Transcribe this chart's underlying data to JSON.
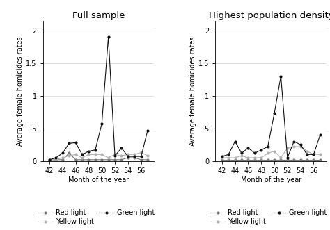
{
  "x": [
    42,
    43,
    44,
    45,
    46,
    47,
    48,
    49,
    50,
    51,
    52,
    53,
    54,
    55,
    56,
    57
  ],
  "left": {
    "title": "Full sample",
    "red": [
      0.02,
      0.02,
      0.02,
      0.12,
      0.02,
      0.02,
      0.02,
      0.02,
      0.02,
      0.02,
      0.02,
      0.02,
      0.05,
      0.05,
      0.02,
      0.02
    ],
    "yellow": [
      0.02,
      0.02,
      0.05,
      0.08,
      0.1,
      0.05,
      0.1,
      0.1,
      0.1,
      0.05,
      0.1,
      0.08,
      0.1,
      0.1,
      0.13,
      0.08
    ],
    "green": [
      0.02,
      0.05,
      0.12,
      0.27,
      0.28,
      0.1,
      0.15,
      0.17,
      0.57,
      1.9,
      0.08,
      0.2,
      0.07,
      0.07,
      0.07,
      0.47
    ]
  },
  "right": {
    "title": "Highest population density",
    "red": [
      0.02,
      0.02,
      0.02,
      0.02,
      0.02,
      0.02,
      0.02,
      0.02,
      0.02,
      0.02,
      0.02,
      0.02,
      0.02,
      0.02,
      0.02,
      0.02
    ],
    "yellow": [
      0.05,
      0.05,
      0.05,
      0.08,
      0.05,
      0.05,
      0.05,
      0.12,
      0.15,
      0.05,
      0.2,
      0.22,
      0.22,
      0.15,
      0.1,
      0.1
    ],
    "green": [
      0.07,
      0.1,
      0.3,
      0.12,
      0.2,
      0.12,
      0.17,
      0.22,
      0.73,
      1.3,
      0.05,
      0.3,
      0.25,
      0.1,
      0.1,
      0.4
    ]
  },
  "ylabel": "Average female homicides rates",
  "xlabel": "Month of the year",
  "ylim": [
    0,
    2.15
  ],
  "ytick_vals": [
    0,
    0.5,
    1.0,
    1.5,
    2.0
  ],
  "ytick_labels": [
    "0",
    ".5",
    "1",
    "1.5",
    "2"
  ],
  "xticks": [
    42,
    44,
    46,
    48,
    50,
    52,
    54,
    56
  ],
  "red_color": "#777777",
  "yellow_color": "#b0b0b0",
  "green_color": "#111111",
  "bg_color": "#ffffff",
  "legend_red": "Red light",
  "legend_yellow": "Yellow light",
  "legend_green": "Green light",
  "title_fontsize": 9.5,
  "label_fontsize": 7,
  "tick_fontsize": 7,
  "legend_fontsize": 7
}
